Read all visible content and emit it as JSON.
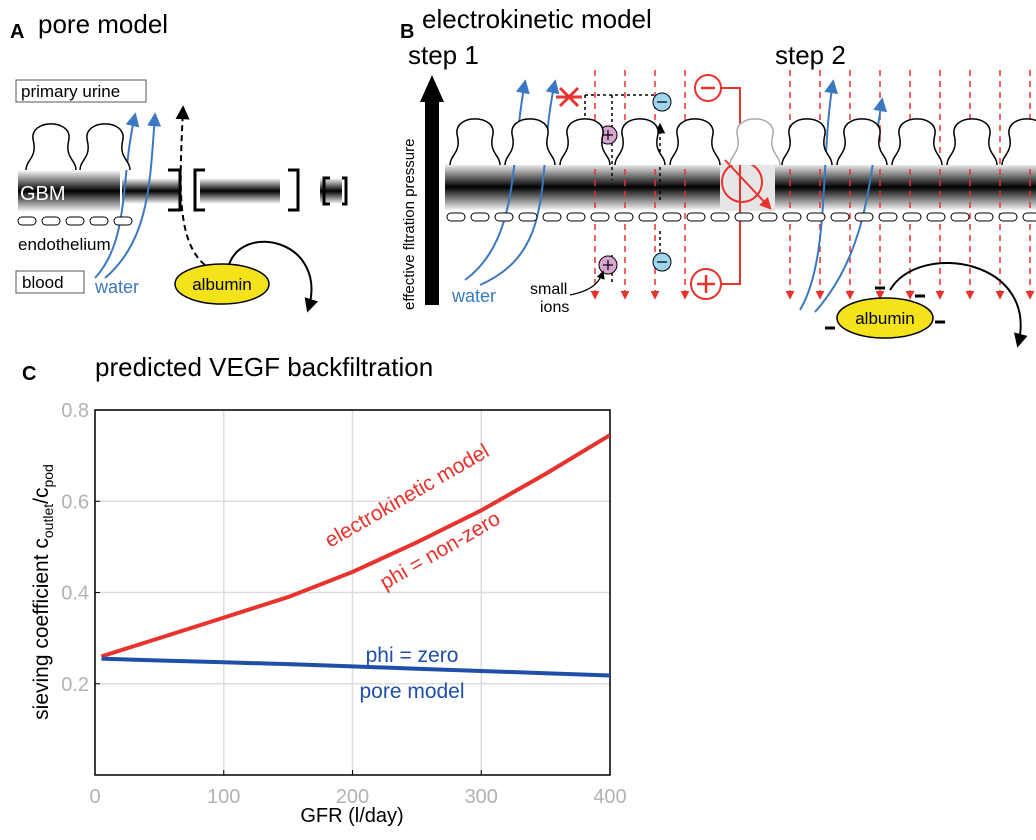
{
  "panel_a": {
    "label": "A",
    "title": "pore model",
    "primary_urine": "primary urine",
    "gbm": "GBM",
    "endothelium": "endothelium",
    "blood": "blood",
    "water": "water",
    "albumin": "albumin"
  },
  "panel_b": {
    "label": "B",
    "title": "electrokinetic model",
    "step1": "step 1",
    "step2": "step 2",
    "pressure": "effective fltration pressure",
    "water": "water",
    "small": "small",
    "ions": "ions",
    "albumin": "albumin"
  },
  "chart_data": {
    "type": "line",
    "panel_label": "C",
    "title": "predicted VEGF backfiltration",
    "xlabel": "GFR (l/day)",
    "ylabel": [
      "sieving coefficient c",
      "outlet",
      "/c",
      "pod"
    ],
    "x": [
      5,
      50,
      100,
      150,
      200,
      250,
      300,
      350,
      400
    ],
    "series": [
      {
        "name": "electrokinetic model",
        "color": "#e8322e",
        "values": [
          0.26,
          0.3,
          0.345,
          0.39,
          0.445,
          0.51,
          0.58,
          0.66,
          0.745
        ]
      },
      {
        "name": "pore model",
        "color": "#1f4fa8",
        "values": [
          0.255,
          0.251,
          0.247,
          0.243,
          0.238,
          0.233,
          0.228,
          0.223,
          0.218
        ]
      }
    ],
    "annotations": [
      "phi = non-zero",
      "phi = zero"
    ],
    "xlim": [
      0,
      400
    ],
    "ylim": [
      0,
      0.8
    ],
    "xticks": [
      0,
      100,
      200,
      300,
      400
    ],
    "yticks": [
      0.2,
      0.4,
      0.6,
      0.8
    ],
    "grid": true
  }
}
